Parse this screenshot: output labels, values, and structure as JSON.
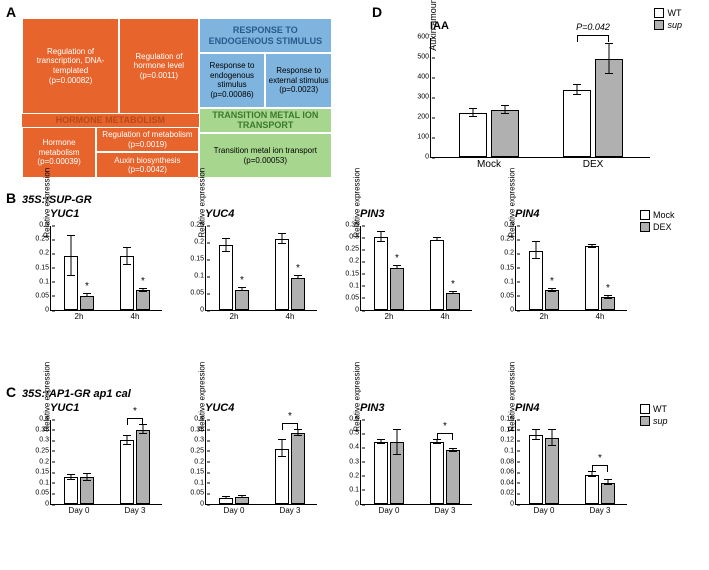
{
  "panels": {
    "A": "A",
    "B": "B",
    "C": "C",
    "D": "D"
  },
  "treemap": {
    "hormone_group_label": "HORMONE METABOLISM",
    "blocks": {
      "transcription": {
        "t": "Regulation of transcription, DNA-templated",
        "p": "(p=0.00082)"
      },
      "hormone_metab": {
        "t": "Hormone metabolism",
        "p": "(p=0.00039)"
      },
      "hormone_level": {
        "t": "Regulation of hormone level",
        "p": "(p=0.0011)"
      },
      "metabolism": {
        "t": "Regulation of metabolism",
        "p": "(p=0.0019)"
      },
      "auxin": {
        "t": "Auxin biosynthesis",
        "p": "(p=0.0042)"
      },
      "endog_header": "RESPONSE TO ENDOGENOUS STIMULUS",
      "endog": {
        "t": "Response to endogenous stimulus",
        "p": "(p=0.00086)"
      },
      "ext": {
        "t": "Response to external stimulus",
        "p": "(p=0.0023)"
      },
      "metal_header": "TRANSITION METAL ION TRANSPORT",
      "metal": {
        "t": "Transition metal ion transport",
        "p": "(p=0.00053)"
      }
    },
    "colors": {
      "orange": "#e7642c",
      "blue": "#7fb4de",
      "green": "#a7d78f",
      "dark_orange": "#b54a1a",
      "dark_blue": "#2a5a8c",
      "dark_green": "#3a7a2c"
    }
  },
  "panelD": {
    "title": "IAA",
    "ylabel": "Auxin amount (pmol/gFW)",
    "pvalue": "P=0.042",
    "legend": [
      "WT",
      "sup"
    ],
    "ymax": 600,
    "yticks": [
      0,
      100,
      200,
      300,
      400,
      500,
      600
    ],
    "groups": [
      "Mock",
      "DEX"
    ],
    "data": {
      "Mock": {
        "WT": 220,
        "sup": 235,
        "WT_err": 20,
        "sup_err": 22
      },
      "DEX": {
        "WT": 335,
        "sup": 490,
        "WT_err": 25,
        "sup_err": 75
      }
    }
  },
  "panelB": {
    "section": "35S::SUP-GR",
    "legend": [
      "Mock",
      "DEX"
    ],
    "xlabels": [
      "2h",
      "4h"
    ],
    "charts": [
      {
        "title": "YUC1",
        "ymax": 0.3,
        "ystep": 0.05,
        "data": [
          [
            0.19,
            0.05
          ],
          [
            0.19,
            0.07
          ]
        ],
        "err": [
          [
            0.07,
            0.005
          ],
          [
            0.03,
            0.005
          ]
        ],
        "stars": [
          [
            false,
            true
          ],
          [
            false,
            true
          ]
        ]
      },
      {
        "title": "YUC4",
        "ymax": 0.25,
        "ystep": 0.05,
        "data": [
          [
            0.19,
            0.06
          ],
          [
            0.21,
            0.095
          ]
        ],
        "err": [
          [
            0.02,
            0.005
          ],
          [
            0.015,
            0.005
          ]
        ],
        "stars": [
          [
            false,
            true
          ],
          [
            false,
            true
          ]
        ]
      },
      {
        "title": "PIN3",
        "ymax": 0.35,
        "ystep": 0.05,
        "data": [
          [
            0.3,
            0.175
          ],
          [
            0.29,
            0.07
          ]
        ],
        "err": [
          [
            0.02,
            0.005
          ],
          [
            0.005,
            0.005
          ]
        ],
        "stars": [
          [
            false,
            true
          ],
          [
            false,
            true
          ]
        ]
      },
      {
        "title": "PIN4",
        "ymax": 0.3,
        "ystep": 0.05,
        "data": [
          [
            0.21,
            0.07
          ],
          [
            0.225,
            0.045
          ]
        ],
        "err": [
          [
            0.03,
            0.005
          ],
          [
            0.005,
            0.005
          ]
        ],
        "stars": [
          [
            false,
            true
          ],
          [
            false,
            true
          ]
        ]
      }
    ]
  },
  "panelC": {
    "section": "35S::AP1-GR ap1 cal",
    "legend": [
      "WT",
      "sup"
    ],
    "xlabels": [
      "Day 0",
      "Day 3"
    ],
    "charts": [
      {
        "title": "YUC1",
        "ymax": 0.4,
        "ystep": 0.05,
        "data": [
          [
            0.125,
            0.125
          ],
          [
            0.3,
            0.35
          ]
        ],
        "err": [
          [
            0.01,
            0.015
          ],
          [
            0.02,
            0.02
          ]
        ],
        "bracket": [
          false,
          true
        ]
      },
      {
        "title": "YUC4",
        "ymax": 0.4,
        "ystep": 0.05,
        "data": [
          [
            0.03,
            0.035
          ],
          [
            0.26,
            0.335
          ]
        ],
        "err": [
          [
            0.005,
            0.005
          ],
          [
            0.04,
            0.015
          ]
        ],
        "bracket": [
          false,
          true
        ]
      },
      {
        "title": "PIN3",
        "ymax": 0.6,
        "ystep": 0.1,
        "data": [
          [
            0.44,
            0.435
          ],
          [
            0.44,
            0.38
          ]
        ],
        "err": [
          [
            0.015,
            0.09
          ],
          [
            0.015,
            0.01
          ]
        ],
        "bracket": [
          false,
          true
        ]
      },
      {
        "title": "PIN4",
        "ymax": 0.16,
        "ystep": 0.02,
        "data": [
          [
            0.13,
            0.125
          ],
          [
            0.055,
            0.04
          ]
        ],
        "err": [
          [
            0.01,
            0.015
          ],
          [
            0.005,
            0.005
          ]
        ],
        "bracket": [
          false,
          true
        ]
      }
    ]
  }
}
